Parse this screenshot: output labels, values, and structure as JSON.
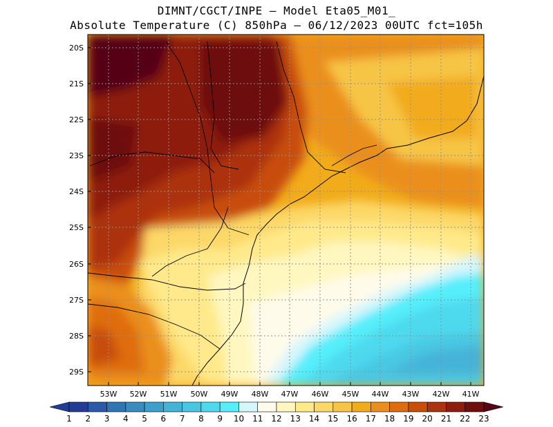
{
  "header": {
    "line1": "DIMNT/CGCT/INPE –  Model Eta05_M01_",
    "line2": "Absolute Temperature (C) 850hPa –  06/12/2023 00UTC fct=105h"
  },
  "map": {
    "lat_labels": [
      "20S",
      "21S",
      "22S",
      "23S",
      "24S",
      "25S",
      "26S",
      "27S",
      "28S",
      "29S"
    ],
    "lon_labels": [
      "53W",
      "52W",
      "51W",
      "50W",
      "49W",
      "48W",
      "47W",
      "46W",
      "45W",
      "44W",
      "43W",
      "42W",
      "41W"
    ]
  },
  "colorbar": {
    "values": [
      "1",
      "2",
      "3",
      "4",
      "5",
      "6",
      "7",
      "8",
      "9",
      "10",
      "11",
      "12",
      "13",
      "14",
      "15",
      "16",
      "17",
      "18",
      "19",
      "20",
      "21",
      "22",
      "23"
    ],
    "colors": [
      "#233c95",
      "#2a5aa8",
      "#3275b3",
      "#3b8bbf",
      "#3f9fcb",
      "#44b3d8",
      "#48c7e3",
      "#4ed9ee",
      "#55eefb",
      "#d5f6fb",
      "#fffbea",
      "#fff7bf",
      "#ffe98a",
      "#fcd868",
      "#f7c545",
      "#f2ab1a",
      "#ea8f1c",
      "#df6d0e",
      "#c84e0a",
      "#ac3210",
      "#8d1d0d",
      "#6e0f0d",
      "#570616"
    ]
  }
}
